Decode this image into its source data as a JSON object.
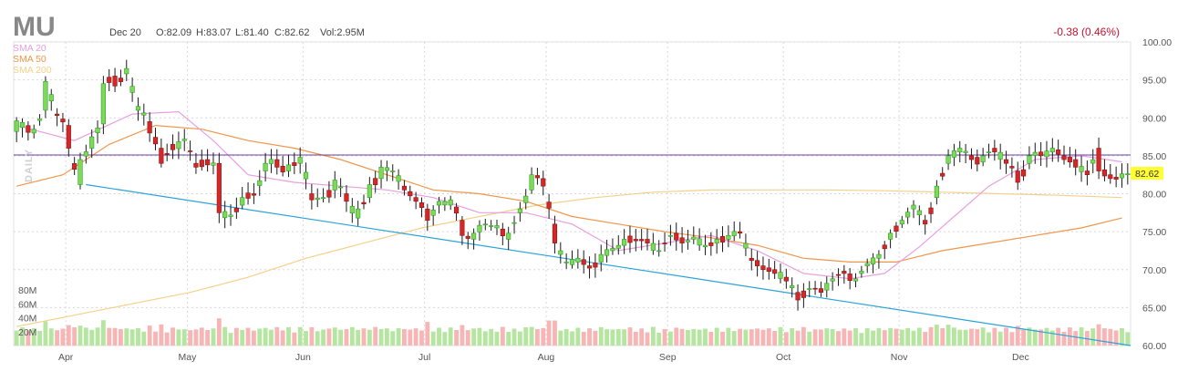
{
  "header": {
    "ticker": "MU",
    "date": "Dec 20",
    "open": "O:82.09",
    "high": "H:83.07",
    "low": "L:81.40",
    "close": "C:82.62",
    "volume": "Vol:2.95M",
    "change": "-0.38 (0.46%)",
    "period_label": "DAILY"
  },
  "legend": [
    {
      "label": "SMA 20",
      "color": "#e8a0e0"
    },
    {
      "label": "SMA 50",
      "color": "#f0964a"
    },
    {
      "label": "SMA 200",
      "color": "#f5d08a"
    }
  ],
  "last_price_label": "82.62",
  "colors": {
    "up": "#2ca02c",
    "up_fill": "#7ed957",
    "down": "#d62728",
    "vol_up": "#b5e6a0",
    "vol_down": "#f7b5b5",
    "trendline": "#29a3d8",
    "resistance": "#6b3fa0",
    "last_badge": "#ffff33",
    "grid": "#d8d8d8"
  },
  "chart_data": {
    "type": "candlestick",
    "price_ylim": [
      60,
      100
    ],
    "price_ticks": [
      "100.00",
      "95.00",
      "90.00",
      "85.00",
      "80.00",
      "75.00",
      "70.00",
      "65.00",
      "60.00"
    ],
    "volume_ticks": [
      "80M",
      "60M",
      "40M",
      "20M"
    ],
    "volume_ylim": [
      0,
      80
    ],
    "months": [
      "Apr",
      "May",
      "Jun",
      "Jul",
      "Aug",
      "Sep",
      "Oct",
      "Nov",
      "Dec"
    ],
    "month_positions": [
      9,
      30,
      50,
      71,
      92,
      113,
      133,
      153,
      174
    ],
    "bar_count": 193,
    "resistance_level": 85.1,
    "trendline": {
      "from": [
        12,
        81.2
      ],
      "to": [
        193,
        60.0
      ]
    },
    "anchors": [
      [
        0,
        88.2,
        89.6
      ],
      [
        3,
        88.0,
        88.5
      ],
      [
        5,
        91.0,
        94.8
      ],
      [
        7,
        90.5,
        90.3
      ],
      [
        9,
        89.0,
        86.0
      ],
      [
        11,
        81.2,
        84.5
      ],
      [
        13,
        86.0,
        87.5
      ],
      [
        15,
        89.2,
        94.5
      ],
      [
        17,
        95.5,
        94.2
      ],
      [
        19,
        95.8,
        96.5
      ],
      [
        21,
        91.0,
        91.5
      ],
      [
        23,
        89.5,
        88.0
      ],
      [
        25,
        86.0,
        84.0
      ],
      [
        27,
        86.5,
        85.8
      ],
      [
        29,
        87.0,
        87.2
      ],
      [
        31,
        84.0,
        83.5
      ],
      [
        33,
        84.5,
        83.8
      ],
      [
        35,
        84.0,
        77.5
      ],
      [
        37,
        77.0,
        77.2
      ],
      [
        39,
        78.5,
        79.5
      ],
      [
        41,
        80.0,
        79.8
      ],
      [
        43,
        83.0,
        84.0
      ],
      [
        45,
        84.5,
        83.5
      ],
      [
        47,
        83.0,
        83.8
      ],
      [
        49,
        84.0,
        84.8
      ],
      [
        51,
        80.0,
        79.2
      ],
      [
        53,
        79.5,
        79.5
      ],
      [
        55,
        80.5,
        81.8
      ],
      [
        57,
        80.0,
        79.0
      ],
      [
        59,
        76.8,
        78.0
      ],
      [
        61,
        79.5,
        81.2
      ],
      [
        63,
        82.0,
        83.5
      ],
      [
        65,
        83.0,
        83.0
      ],
      [
        67,
        81.0,
        80.5
      ],
      [
        69,
        79.5,
        79.0
      ],
      [
        71,
        78.0,
        76.5
      ],
      [
        73,
        78.5,
        79.0
      ],
      [
        75,
        78.5,
        79.2
      ],
      [
        77,
        76.5,
        74.5
      ],
      [
        79,
        74.0,
        74.8
      ],
      [
        81,
        76.0,
        76.0
      ],
      [
        83,
        75.5,
        75.8
      ],
      [
        85,
        74.0,
        74.8
      ],
      [
        87,
        77.5,
        78.0
      ],
      [
        89,
        80.5,
        82.5
      ],
      [
        91,
        82.0,
        81.0
      ],
      [
        93,
        76.0,
        73.5
      ],
      [
        95,
        71.0,
        71.0
      ],
      [
        97,
        71.0,
        71.5
      ],
      [
        99,
        70.5,
        70.2
      ],
      [
        101,
        71.0,
        72.0
      ],
      [
        103,
        72.5,
        72.8
      ],
      [
        105,
        73.2,
        74.0
      ],
      [
        107,
        74.0,
        73.8
      ],
      [
        109,
        74.0,
        73.5
      ],
      [
        111,
        72.5,
        72.5
      ],
      [
        113,
        74.5,
        74.5
      ],
      [
        115,
        74.2,
        73.5
      ],
      [
        117,
        74.0,
        74.3
      ],
      [
        119,
        73.0,
        73.2
      ],
      [
        121,
        73.5,
        74.0
      ],
      [
        123,
        74.0,
        74.5
      ],
      [
        125,
        75.0,
        74.8
      ],
      [
        127,
        71.5,
        71.2
      ],
      [
        129,
        70.5,
        70.0
      ],
      [
        131,
        70.0,
        69.5
      ],
      [
        133,
        69.0,
        68.5
      ],
      [
        135,
        67.0,
        66.0
      ],
      [
        137,
        67.5,
        67.5
      ],
      [
        139,
        67.5,
        67.0
      ],
      [
        141,
        68.5,
        68.8
      ],
      [
        143,
        69.8,
        69.5
      ],
      [
        145,
        68.5,
        68.8
      ],
      [
        147,
        70.5,
        70.8
      ],
      [
        149,
        71.5,
        72.0
      ],
      [
        151,
        74.0,
        74.8
      ],
      [
        153,
        76.0,
        76.5
      ],
      [
        155,
        78.0,
        78.5
      ],
      [
        157,
        76.5,
        76.0
      ],
      [
        159,
        79.5,
        81.0
      ],
      [
        161,
        84.0,
        85.0
      ],
      [
        163,
        85.5,
        86.0
      ],
      [
        165,
        85.0,
        84.5
      ],
      [
        167,
        84.2,
        85.0
      ],
      [
        169,
        86.0,
        85.5
      ],
      [
        171,
        84.5,
        84.0
      ],
      [
        173,
        83.0,
        81.5
      ],
      [
        175,
        84.0,
        85.0
      ],
      [
        177,
        85.5,
        85.0
      ],
      [
        179,
        85.5,
        86.0
      ],
      [
        181,
        85.0,
        84.5
      ],
      [
        183,
        84.5,
        83.5
      ],
      [
        185,
        83.0,
        82.5
      ],
      [
        187,
        86.0,
        83.0
      ],
      [
        189,
        82.5,
        82.0
      ],
      [
        191,
        82.09,
        82.62
      ]
    ],
    "sma20_points": [
      [
        0,
        89.0
      ],
      [
        10,
        87.0
      ],
      [
        20,
        90.5
      ],
      [
        28,
        90.8
      ],
      [
        34,
        87.0
      ],
      [
        40,
        82.5
      ],
      [
        48,
        81.5
      ],
      [
        56,
        81.0
      ],
      [
        64,
        80.5
      ],
      [
        72,
        79.5
      ],
      [
        80,
        77.5
      ],
      [
        88,
        77.5
      ],
      [
        96,
        76.0
      ],
      [
        104,
        72.5
      ],
      [
        112,
        73.5
      ],
      [
        120,
        74.5
      ],
      [
        128,
        72.5
      ],
      [
        136,
        69.5
      ],
      [
        144,
        68.8
      ],
      [
        150,
        69.5
      ],
      [
        156,
        73.0
      ],
      [
        162,
        77.0
      ],
      [
        168,
        81.0
      ],
      [
        176,
        84.5
      ],
      [
        184,
        85.0
      ],
      [
        191,
        84.2
      ]
    ],
    "sma50_points": [
      [
        0,
        81.0
      ],
      [
        8,
        82.5
      ],
      [
        16,
        86.5
      ],
      [
        24,
        89.0
      ],
      [
        32,
        88.5
      ],
      [
        40,
        87.0
      ],
      [
        48,
        86.0
      ],
      [
        56,
        84.5
      ],
      [
        64,
        82.5
      ],
      [
        72,
        80.5
      ],
      [
        80,
        80.0
      ],
      [
        88,
        79.0
      ],
      [
        96,
        77.0
      ],
      [
        104,
        76.0
      ],
      [
        112,
        75.0
      ],
      [
        120,
        74.2
      ],
      [
        128,
        73.2
      ],
      [
        136,
        71.5
      ],
      [
        144,
        71.0
      ],
      [
        152,
        71.0
      ],
      [
        160,
        72.5
      ],
      [
        168,
        73.5
      ],
      [
        176,
        74.5
      ],
      [
        184,
        75.5
      ],
      [
        191,
        76.8
      ]
    ],
    "sma200_points": [
      [
        0,
        62.5
      ],
      [
        10,
        64.0
      ],
      [
        20,
        65.5
      ],
      [
        30,
        67.0
      ],
      [
        40,
        69.0
      ],
      [
        50,
        71.5
      ],
      [
        60,
        73.5
      ],
      [
        70,
        75.5
      ],
      [
        80,
        77.0
      ],
      [
        90,
        78.5
      ],
      [
        100,
        79.5
      ],
      [
        110,
        80.2
      ],
      [
        120,
        80.5
      ],
      [
        130,
        80.5
      ],
      [
        140,
        80.5
      ],
      [
        150,
        80.4
      ],
      [
        160,
        80.2
      ],
      [
        170,
        80.0
      ],
      [
        180,
        79.8
      ],
      [
        191,
        79.5
      ]
    ]
  }
}
